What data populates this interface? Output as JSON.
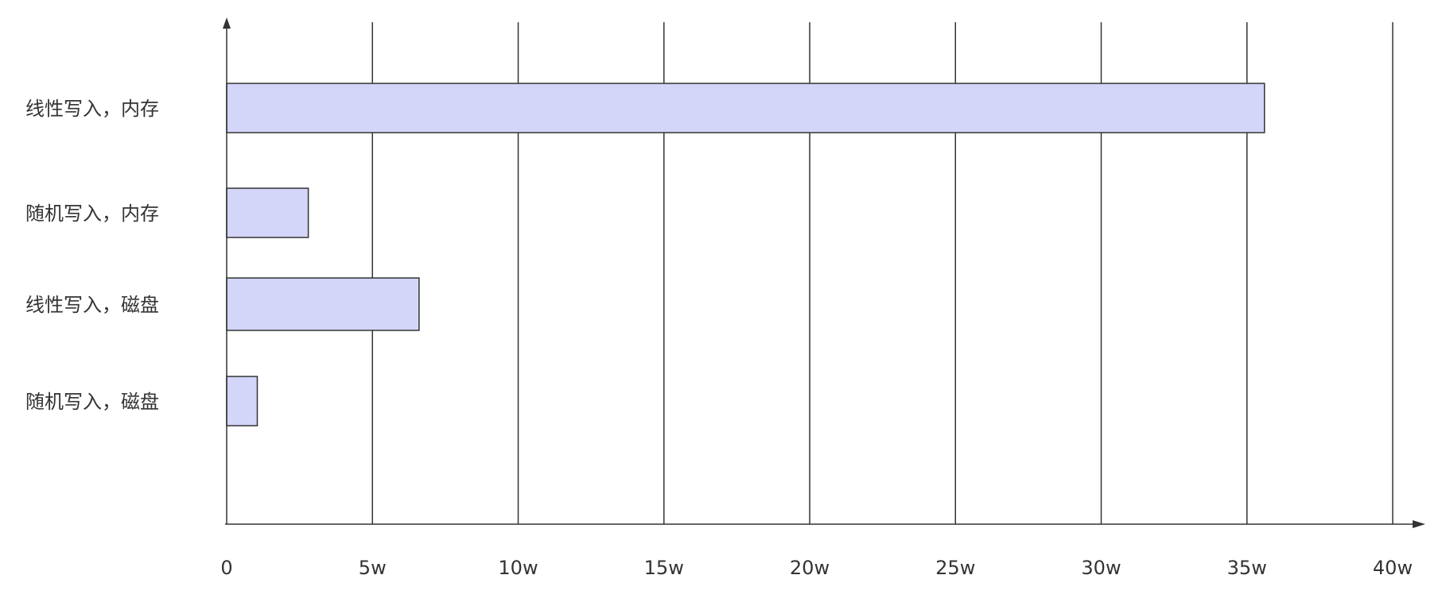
{
  "chart_data": {
    "type": "bar",
    "orientation": "horizontal",
    "categories": [
      "线性写入，内存",
      "随机写入，内存",
      "线性写入，磁盘",
      "随机写入，磁盘"
    ],
    "values": [
      35.6,
      2.8,
      6.6,
      1.05
    ],
    "unit": "w",
    "xlim": [
      0,
      40
    ],
    "xticks": [
      0,
      5,
      10,
      15,
      20,
      25,
      30,
      35,
      40
    ],
    "xtick_labels": [
      "0",
      "5w",
      "10w",
      "15w",
      "20w",
      "25w",
      "30w",
      "35w",
      "40w"
    ],
    "title": "",
    "xlabel": "",
    "ylabel": "",
    "grid": "vertical",
    "legend": "none",
    "colors": {
      "bar_fill": "#d3d6f8",
      "bar_stroke": "#333333",
      "axis": "#333333",
      "grid": "#333333"
    }
  }
}
